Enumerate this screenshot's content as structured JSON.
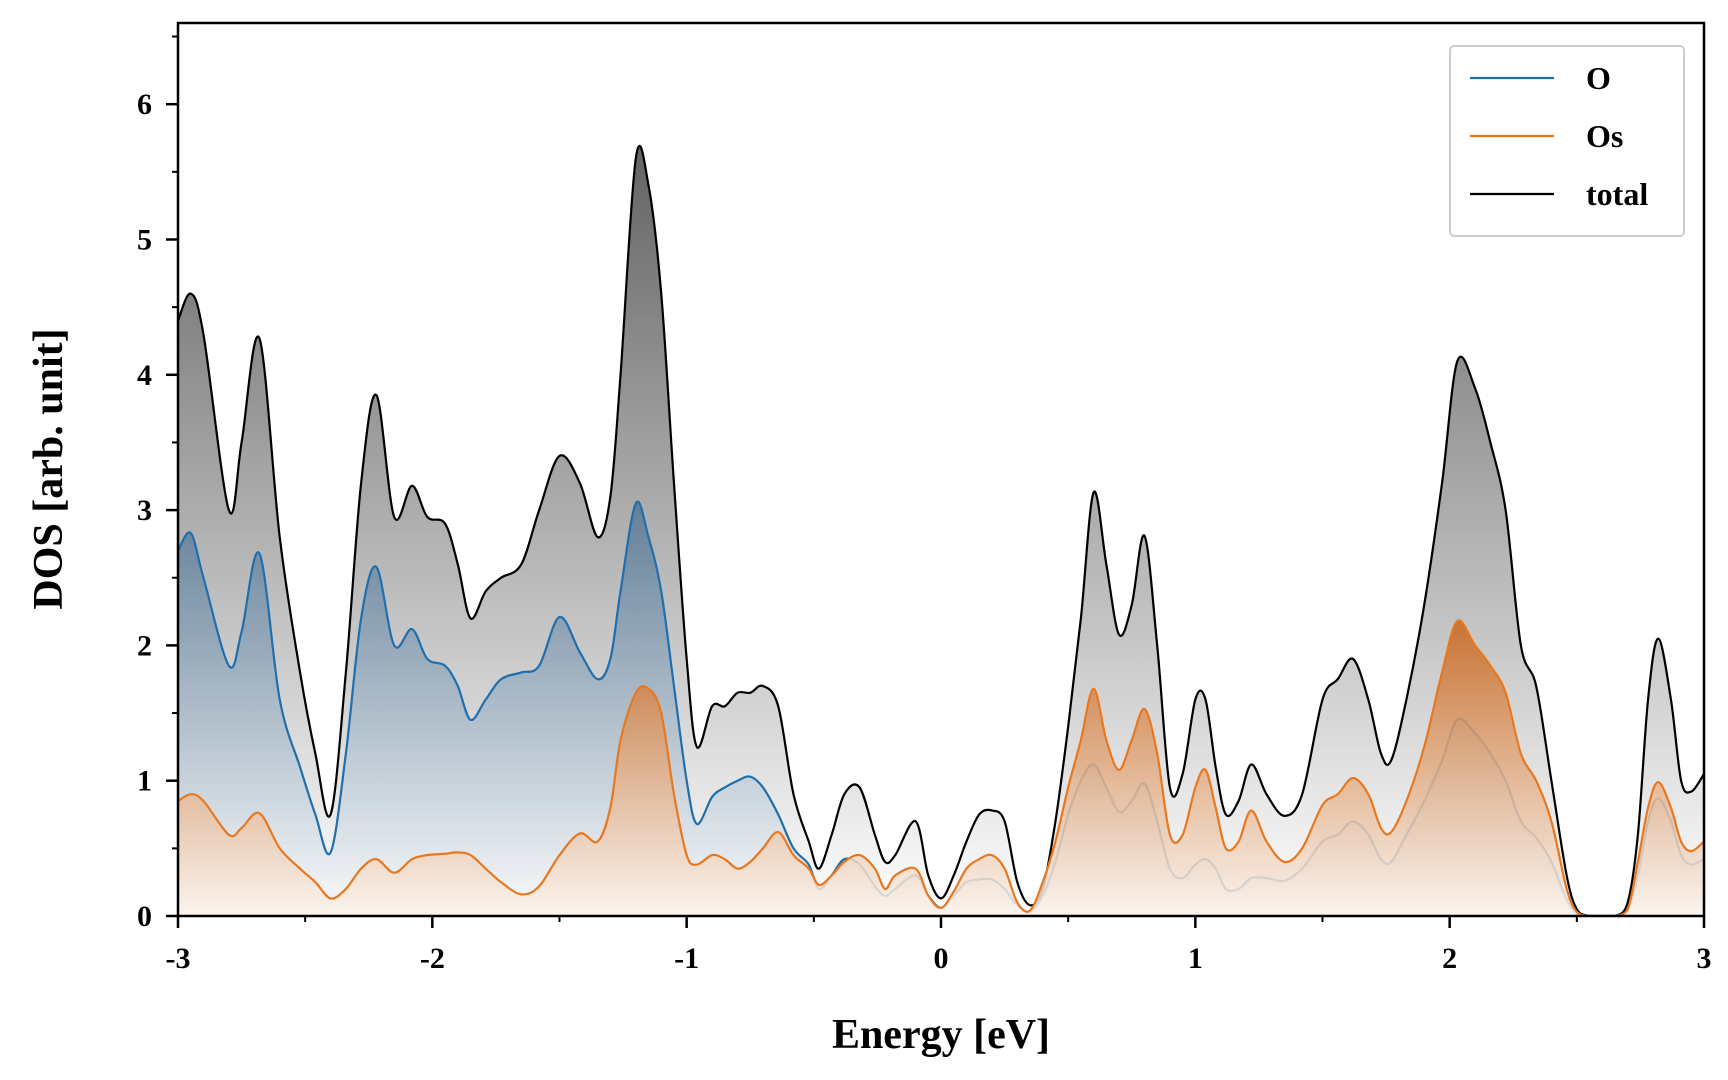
{
  "chart_data": {
    "type": "area",
    "xlabel": "Energy [eV]",
    "ylabel": "DOS [arb. unit]",
    "xlim": [
      -3,
      3
    ],
    "ylim": [
      0,
      6.6
    ],
    "xticks": [
      -3,
      -2,
      -1,
      0,
      1,
      2,
      3
    ],
    "xtick_labels": [
      "-3",
      "-2",
      "-1",
      "0",
      "1",
      "2",
      "3"
    ],
    "yticks": [
      0,
      1,
      2,
      3,
      4,
      5,
      6
    ],
    "ytick_labels": [
      "0",
      "1",
      "2",
      "3",
      "4",
      "5",
      "6"
    ],
    "grid": false,
    "legend_position": "top-right",
    "series": [
      {
        "name": "total",
        "color": "#000000",
        "fill": "gradient-gray",
        "x": [
          -3.0,
          -2.95,
          -2.9,
          -2.8,
          -2.75,
          -2.68,
          -2.6,
          -2.52,
          -2.46,
          -2.4,
          -2.34,
          -2.28,
          -2.22,
          -2.15,
          -2.08,
          -2.02,
          -1.95,
          -1.9,
          -1.85,
          -1.79,
          -1.73,
          -1.65,
          -1.58,
          -1.5,
          -1.42,
          -1.35,
          -1.3,
          -1.26,
          -1.2,
          -1.15,
          -1.1,
          -1.05,
          -1.0,
          -0.96,
          -0.9,
          -0.85,
          -0.8,
          -0.75,
          -0.7,
          -0.64,
          -0.58,
          -0.52,
          -0.48,
          -0.43,
          -0.38,
          -0.32,
          -0.26,
          -0.22,
          -0.18,
          -0.1,
          -0.05,
          0.0,
          0.05,
          0.1,
          0.15,
          0.2,
          0.25,
          0.3,
          0.35,
          0.4,
          0.45,
          0.5,
          0.55,
          0.6,
          0.65,
          0.7,
          0.75,
          0.8,
          0.85,
          0.9,
          0.95,
          1.0,
          1.04,
          1.08,
          1.12,
          1.17,
          1.22,
          1.28,
          1.35,
          1.42,
          1.5,
          1.56,
          1.62,
          1.68,
          1.73,
          1.77,
          1.83,
          1.9,
          1.97,
          2.03,
          2.1,
          2.16,
          2.22,
          2.28,
          2.34,
          2.4,
          2.46,
          2.5,
          2.55,
          2.6,
          2.65,
          2.7,
          2.74,
          2.78,
          2.82,
          2.87,
          2.91,
          2.95,
          3.0
        ],
        "values": [
          4.4,
          4.6,
          4.3,
          3.0,
          3.5,
          4.27,
          2.8,
          1.8,
          1.2,
          0.75,
          1.8,
          3.2,
          3.85,
          2.95,
          3.18,
          2.95,
          2.9,
          2.6,
          2.2,
          2.4,
          2.5,
          2.6,
          3.0,
          3.4,
          3.2,
          2.8,
          3.1,
          4.0,
          5.6,
          5.4,
          4.6,
          3.2,
          1.9,
          1.25,
          1.55,
          1.55,
          1.65,
          1.65,
          1.7,
          1.55,
          0.9,
          0.55,
          0.35,
          0.6,
          0.9,
          0.95,
          0.6,
          0.4,
          0.45,
          0.7,
          0.3,
          0.13,
          0.3,
          0.55,
          0.75,
          0.78,
          0.7,
          0.25,
          0.08,
          0.2,
          0.7,
          1.4,
          2.2,
          3.13,
          2.6,
          2.08,
          2.3,
          2.81,
          2.0,
          0.95,
          1.05,
          1.6,
          1.6,
          1.1,
          0.75,
          0.85,
          1.12,
          0.9,
          0.74,
          0.9,
          1.6,
          1.75,
          1.9,
          1.6,
          1.2,
          1.15,
          1.6,
          2.3,
          3.2,
          4.1,
          3.9,
          3.5,
          3.0,
          2.0,
          1.7,
          1.0,
          0.3,
          0.05,
          0.0,
          0.0,
          0.0,
          0.1,
          0.6,
          1.6,
          2.05,
          1.6,
          1.0,
          0.92,
          1.05
        ]
      },
      {
        "name": "O",
        "color": "#1f6fae",
        "fill": "gradient-blue",
        "x": [
          -3.0,
          -2.95,
          -2.9,
          -2.8,
          -2.75,
          -2.68,
          -2.6,
          -2.52,
          -2.46,
          -2.4,
          -2.34,
          -2.28,
          -2.22,
          -2.15,
          -2.08,
          -2.02,
          -1.95,
          -1.9,
          -1.85,
          -1.79,
          -1.73,
          -1.65,
          -1.58,
          -1.5,
          -1.42,
          -1.35,
          -1.3,
          -1.26,
          -1.2,
          -1.15,
          -1.1,
          -1.05,
          -1.0,
          -0.96,
          -0.9,
          -0.85,
          -0.8,
          -0.75,
          -0.7,
          -0.64,
          -0.58,
          -0.52,
          -0.48,
          -0.43,
          -0.38,
          -0.32,
          -0.26,
          -0.22,
          -0.18,
          -0.1,
          -0.05,
          0.0,
          0.05,
          0.1,
          0.15,
          0.2,
          0.25,
          0.3,
          0.35,
          0.4,
          0.45,
          0.5,
          0.55,
          0.6,
          0.65,
          0.7,
          0.75,
          0.8,
          0.85,
          0.9,
          0.95,
          1.0,
          1.04,
          1.08,
          1.12,
          1.17,
          1.22,
          1.28,
          1.35,
          1.42,
          1.5,
          1.56,
          1.62,
          1.68,
          1.73,
          1.77,
          1.83,
          1.9,
          1.97,
          2.03,
          2.1,
          2.16,
          2.22,
          2.28,
          2.34,
          2.4,
          2.46,
          2.5,
          2.55,
          2.6,
          2.65,
          2.7,
          2.74,
          2.78,
          2.82,
          2.87,
          2.91,
          2.95,
          3.0
        ],
        "values": [
          2.7,
          2.83,
          2.5,
          1.85,
          2.1,
          2.68,
          1.6,
          1.1,
          0.75,
          0.47,
          1.2,
          2.2,
          2.58,
          2.0,
          2.12,
          1.9,
          1.85,
          1.7,
          1.45,
          1.6,
          1.75,
          1.8,
          1.85,
          2.21,
          1.95,
          1.75,
          1.9,
          2.4,
          3.05,
          2.8,
          2.4,
          1.7,
          1.0,
          0.68,
          0.88,
          0.95,
          1.0,
          1.03,
          0.95,
          0.75,
          0.5,
          0.38,
          0.2,
          0.3,
          0.42,
          0.38,
          0.22,
          0.15,
          0.2,
          0.3,
          0.15,
          0.06,
          0.15,
          0.25,
          0.27,
          0.27,
          0.2,
          0.08,
          0.03,
          0.15,
          0.4,
          0.75,
          1.0,
          1.12,
          0.95,
          0.77,
          0.85,
          0.98,
          0.7,
          0.35,
          0.28,
          0.38,
          0.42,
          0.35,
          0.2,
          0.2,
          0.28,
          0.28,
          0.26,
          0.35,
          0.55,
          0.6,
          0.7,
          0.6,
          0.42,
          0.4,
          0.6,
          0.85,
          1.15,
          1.45,
          1.35,
          1.2,
          1.0,
          0.7,
          0.58,
          0.4,
          0.12,
          0.02,
          0.0,
          0.0,
          0.0,
          0.05,
          0.3,
          0.7,
          0.87,
          0.7,
          0.45,
          0.38,
          0.42
        ]
      },
      {
        "name": "Os",
        "color": "#e8781f",
        "fill": "gradient-orange",
        "x": [
          -3.0,
          -2.95,
          -2.9,
          -2.8,
          -2.75,
          -2.68,
          -2.6,
          -2.52,
          -2.46,
          -2.4,
          -2.34,
          -2.28,
          -2.22,
          -2.15,
          -2.08,
          -2.02,
          -1.95,
          -1.9,
          -1.85,
          -1.79,
          -1.73,
          -1.65,
          -1.58,
          -1.5,
          -1.42,
          -1.35,
          -1.3,
          -1.26,
          -1.2,
          -1.15,
          -1.1,
          -1.05,
          -1.0,
          -0.96,
          -0.9,
          -0.85,
          -0.8,
          -0.75,
          -0.7,
          -0.64,
          -0.58,
          -0.52,
          -0.48,
          -0.43,
          -0.38,
          -0.32,
          -0.26,
          -0.22,
          -0.18,
          -0.1,
          -0.05,
          0.0,
          0.05,
          0.1,
          0.15,
          0.2,
          0.25,
          0.3,
          0.35,
          0.4,
          0.45,
          0.5,
          0.55,
          0.6,
          0.65,
          0.7,
          0.75,
          0.8,
          0.85,
          0.9,
          0.95,
          1.0,
          1.04,
          1.08,
          1.12,
          1.17,
          1.22,
          1.28,
          1.35,
          1.42,
          1.5,
          1.56,
          1.62,
          1.68,
          1.73,
          1.77,
          1.83,
          1.9,
          1.97,
          2.03,
          2.1,
          2.16,
          2.22,
          2.28,
          2.34,
          2.4,
          2.46,
          2.5,
          2.55,
          2.6,
          2.65,
          2.7,
          2.74,
          2.78,
          2.82,
          2.87,
          2.91,
          2.95,
          3.0
        ],
        "values": [
          0.85,
          0.9,
          0.85,
          0.6,
          0.65,
          0.76,
          0.5,
          0.35,
          0.25,
          0.13,
          0.2,
          0.35,
          0.42,
          0.32,
          0.42,
          0.45,
          0.46,
          0.47,
          0.45,
          0.35,
          0.25,
          0.16,
          0.22,
          0.45,
          0.61,
          0.55,
          0.8,
          1.3,
          1.65,
          1.68,
          1.5,
          0.9,
          0.45,
          0.38,
          0.45,
          0.42,
          0.35,
          0.4,
          0.5,
          0.62,
          0.45,
          0.35,
          0.23,
          0.3,
          0.4,
          0.45,
          0.35,
          0.2,
          0.3,
          0.35,
          0.15,
          0.06,
          0.18,
          0.35,
          0.42,
          0.45,
          0.35,
          0.1,
          0.04,
          0.25,
          0.55,
          0.95,
          1.3,
          1.68,
          1.3,
          1.08,
          1.3,
          1.53,
          1.2,
          0.6,
          0.6,
          0.95,
          1.08,
          0.8,
          0.5,
          0.55,
          0.78,
          0.55,
          0.4,
          0.5,
          0.82,
          0.9,
          1.02,
          0.9,
          0.65,
          0.62,
          0.85,
          1.25,
          1.8,
          2.18,
          2.0,
          1.85,
          1.65,
          1.2,
          1.0,
          0.7,
          0.2,
          0.03,
          0.0,
          0.0,
          0.0,
          0.05,
          0.4,
          0.8,
          0.99,
          0.8,
          0.55,
          0.48,
          0.55
        ]
      }
    ]
  }
}
